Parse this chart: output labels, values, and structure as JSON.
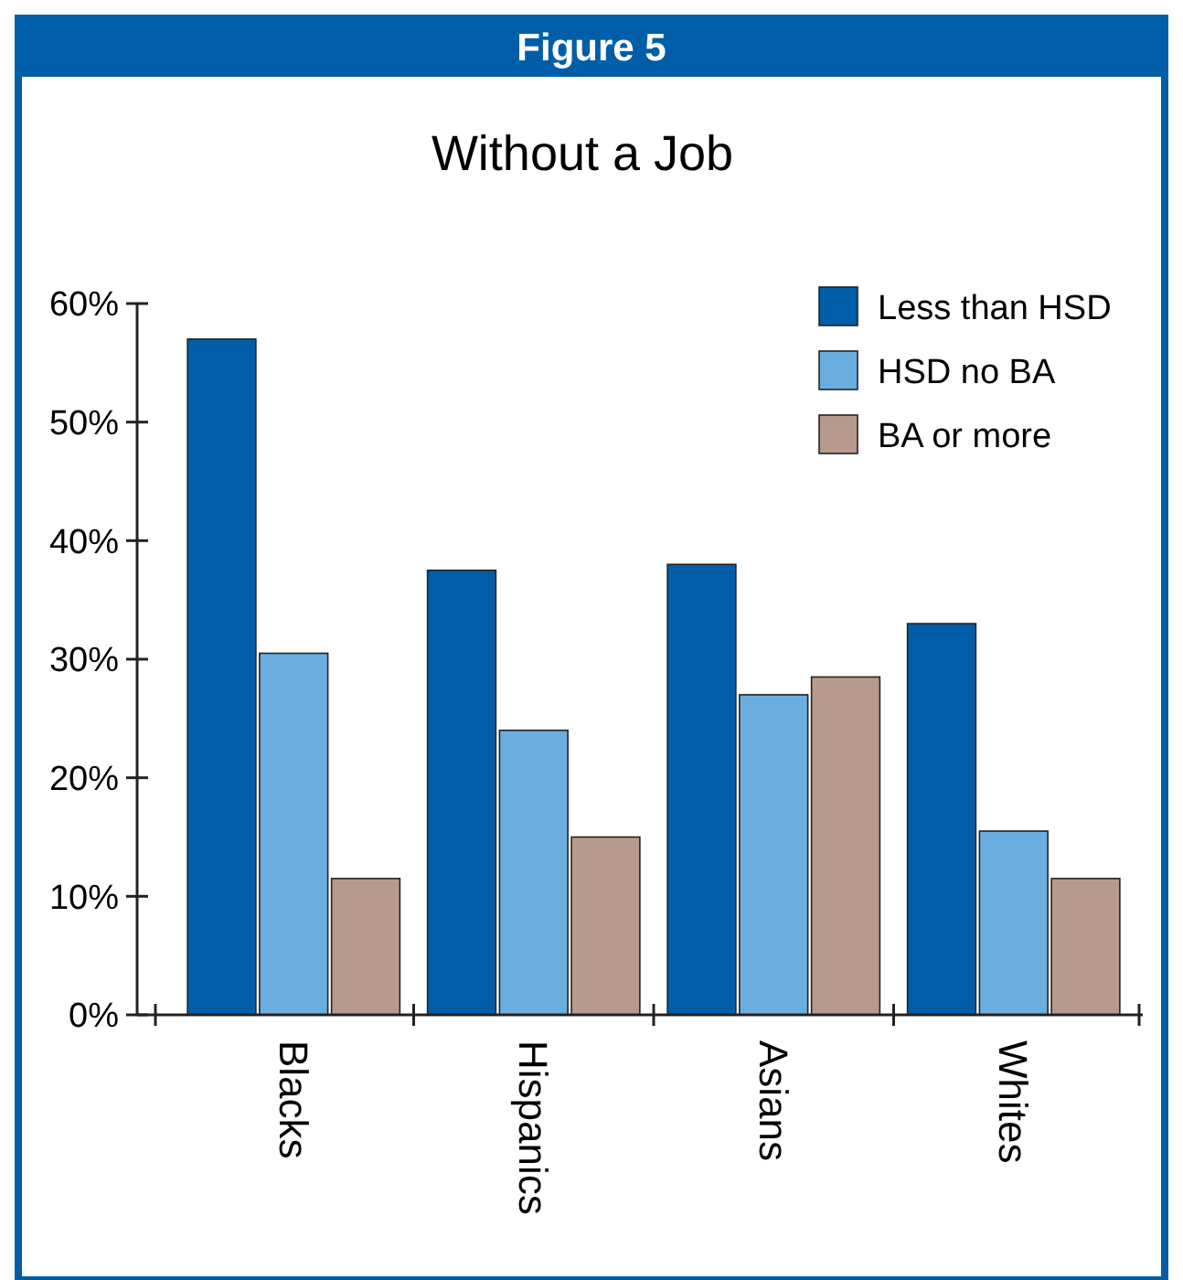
{
  "chart_data": {
    "type": "bar",
    "title": "Without a Job",
    "annotations": [
      "Figure 5"
    ],
    "categories": [
      "Blacks",
      "Hispanics",
      "Asians",
      "Whites"
    ],
    "series": [
      {
        "name": "Less than HSD",
        "color": "#005ea8",
        "values": [
          57,
          37.5,
          38,
          33
        ]
      },
      {
        "name": "HSD no BA",
        "color": "#6aaee0",
        "values": [
          30.5,
          24,
          27,
          15.5
        ]
      },
      {
        "name": "BA or more",
        "color": "#b89a8c",
        "values": [
          11.5,
          15,
          28.5,
          11.5
        ]
      }
    ],
    "ylim": [
      0,
      60
    ],
    "yticks": [
      {
        "value": 0,
        "label": "0%"
      },
      {
        "value": 10,
        "label": "10%"
      },
      {
        "value": 20,
        "label": "20%"
      },
      {
        "value": 30,
        "label": "30%"
      },
      {
        "value": 40,
        "label": "40%"
      },
      {
        "value": 50,
        "label": "50%"
      },
      {
        "value": 60,
        "label": "60%"
      }
    ],
    "legend": "top right",
    "grid": false
  }
}
